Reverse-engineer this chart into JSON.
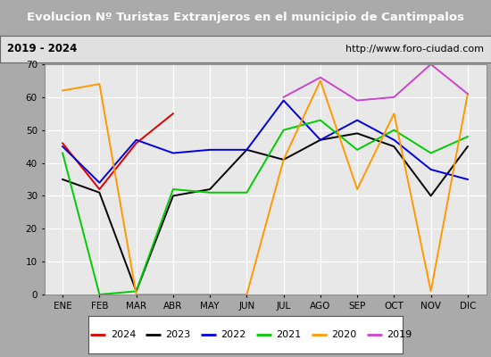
{
  "title": "Evolucion Nº Turistas Extranjeros en el municipio de Cantimpalos",
  "subtitle_left": "2019 - 2024",
  "subtitle_right": "http://www.foro-ciudad.com",
  "months": [
    "ENE",
    "FEB",
    "MAR",
    "ABR",
    "MAY",
    "JUN",
    "JUL",
    "AGO",
    "SEP",
    "OCT",
    "NOV",
    "DIC"
  ],
  "series": {
    "2024": {
      "color": "#dd0000",
      "data": [
        46,
        32,
        46,
        55,
        null,
        null,
        null,
        null,
        null,
        null,
        null,
        null
      ]
    },
    "2023": {
      "color": "#000000",
      "data": [
        35,
        31,
        1,
        30,
        32,
        44,
        41,
        47,
        49,
        45,
        30,
        45
      ]
    },
    "2022": {
      "color": "#0000dd",
      "data": [
        45,
        34,
        47,
        43,
        44,
        44,
        59,
        47,
        53,
        47,
        38,
        35
      ]
    },
    "2021": {
      "color": "#00cc00",
      "data": [
        43,
        0,
        1,
        32,
        31,
        31,
        50,
        53,
        44,
        50,
        43,
        48
      ]
    },
    "2020": {
      "color": "#ff9900",
      "data": [
        62,
        64,
        0,
        0,
        0,
        0,
        41,
        65,
        32,
        55,
        1,
        61
      ]
    },
    "2019": {
      "color": "#cc44cc",
      "data": [
        null,
        null,
        null,
        null,
        null,
        null,
        60,
        66,
        59,
        60,
        70,
        61
      ]
    }
  },
  "ylim": [
    0,
    70
  ],
  "yticks": [
    0,
    10,
    20,
    30,
    40,
    50,
    60,
    70
  ],
  "title_bg": "#3a7abf",
  "title_color": "#ffffff",
  "subtitle_bg": "#e0e0e0",
  "subtitle_color": "#000000",
  "plot_bg": "#e8e8e8",
  "grid_color": "#ffffff",
  "fig_bg": "#aaaaaa"
}
